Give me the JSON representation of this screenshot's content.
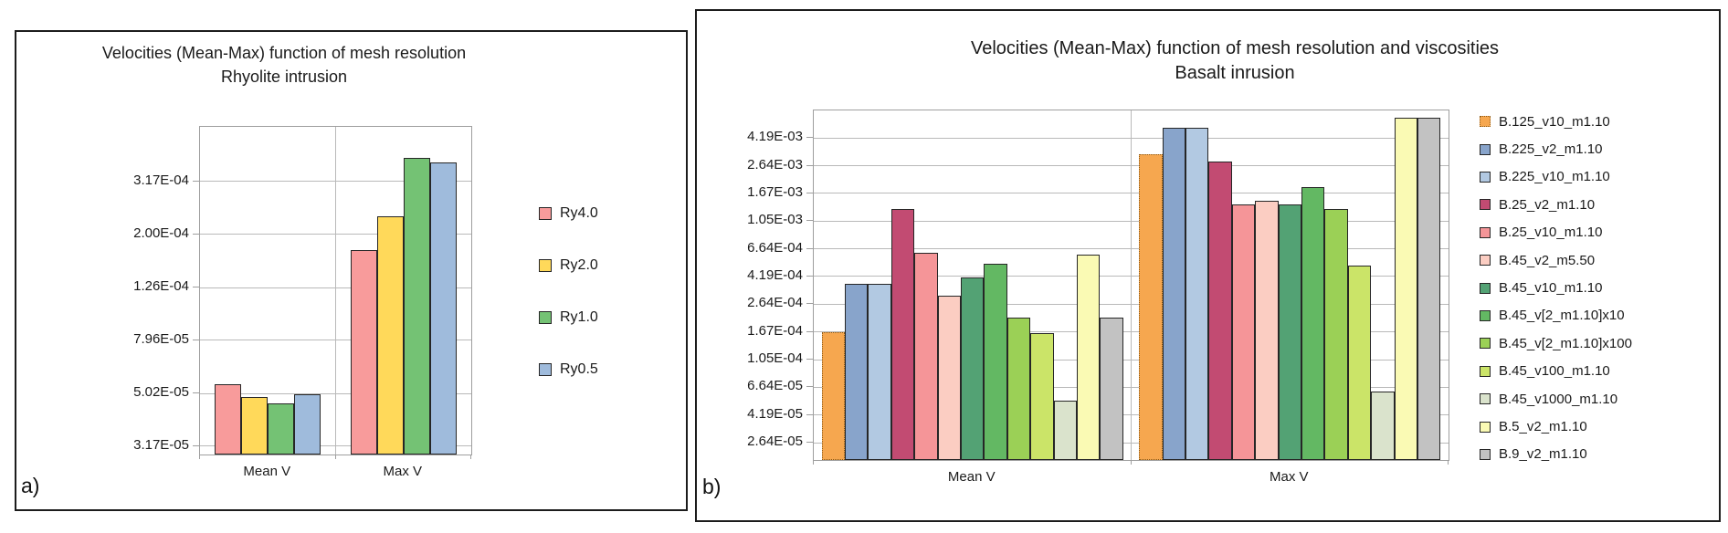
{
  "figure": {
    "panel_a_label": "a)",
    "panel_b_label": "b)"
  },
  "chart_data": [
    {
      "type": "bar",
      "scale": "log",
      "title": "Velocities (Mean-Max) function of mesh resolution",
      "subtitle": "Rhyolite intrusion",
      "categories": [
        "Mean V",
        "Max V"
      ],
      "series": [
        {
          "name": "Ry4.0",
          "color": "#F89B9B",
          "values": [
            5.45e-05,
            0.000175
          ]
        },
        {
          "name": "Ry2.0",
          "color": "#FFD95A",
          "values": [
            4.85e-05,
            0.000235
          ]
        },
        {
          "name": "Ry1.0",
          "color": "#74C274",
          "values": [
            4.6e-05,
            0.00039
          ]
        },
        {
          "name": "Ry0.5",
          "color": "#9FBBDC",
          "values": [
            5e-05,
            0.000375
          ]
        }
      ],
      "y_tick_values": [
        3.17e-05,
        5.02e-05,
        7.96e-05,
        0.000126,
        0.0002,
        0.000317
      ],
      "y_tick_labels": [
        "3.17E-05",
        "5.02E-05",
        "7.96E-05",
        "1.26E-04",
        "2.00E-04",
        "3.17E-04"
      ],
      "ylim": [
        2.95e-05,
        0.00051
      ],
      "grid": true,
      "legend_position": "right",
      "bar_group_fill": 0.781
    },
    {
      "type": "bar",
      "scale": "log",
      "title": "Velocities (Mean-Max) function of mesh resolution and viscosities",
      "subtitle": "Basalt inrusion",
      "categories": [
        "Mean V",
        "Max V"
      ],
      "series": [
        {
          "name": "B.125_v10_m1.10",
          "color": "#F6A74F",
          "border_style": "dotted",
          "border_color": "#8a5a19",
          "values": [
            0.000167,
            0.0032
          ]
        },
        {
          "name": "B.225_v2_m1.10",
          "color": "#88A4CB",
          "values": [
            0.00037,
            0.005
          ]
        },
        {
          "name": "B.225_v10_m1.10",
          "color": "#B2C9E2",
          "values": [
            0.00037,
            0.005
          ]
        },
        {
          "name": "B.25_v2_m1.10",
          "color": "#C24B72",
          "values": [
            0.00128,
            0.00285
          ]
        },
        {
          "name": "B.25_v10_m1.10",
          "color": "#F59598",
          "values": [
            0.00062,
            0.0014
          ]
        },
        {
          "name": "B.45_v2_m5.50",
          "color": "#FBCDC2",
          "values": [
            0.000305,
            0.00147
          ]
        },
        {
          "name": "B.45_v10_m1.10",
          "color": "#53A274",
          "values": [
            0.000415,
            0.00138
          ]
        },
        {
          "name": "B.45_v[2_m1.10]x10",
          "color": "#63B863",
          "values": [
            0.00052,
            0.00185
          ]
        },
        {
          "name": "B.45_v[2_m1.10]x100",
          "color": "#9BD056",
          "values": [
            0.00021,
            0.00128
          ]
        },
        {
          "name": "B.45_v100_m1.10",
          "color": "#CBE468",
          "values": [
            0.000163,
            0.0005
          ]
        },
        {
          "name": "B.45_v1000_m1.10",
          "color": "#DAE3CC",
          "values": [
            5.3e-05,
            6.2e-05
          ]
        },
        {
          "name": "B.5_v2_m1.10",
          "color": "#FAFAB4",
          "values": [
            0.0006,
            0.0059
          ]
        },
        {
          "name": "B.9_v2_m1.10",
          "color": "#C2C2C2",
          "values": [
            0.00021,
            0.0059
          ]
        }
      ],
      "y_tick_values": [
        2.64e-05,
        4.19e-05,
        6.64e-05,
        0.000105,
        0.000167,
        0.000264,
        0.000419,
        0.000664,
        0.00105,
        0.00167,
        0.00264,
        0.00419
      ],
      "y_tick_labels": [
        "2.64E-05",
        "4.19E-05",
        "6.64E-05",
        "1.05E-04",
        "1.67E-04",
        "2.64E-04",
        "4.19E-04",
        "6.64E-04",
        "1.05E-03",
        "1.67E-03",
        "2.64E-03",
        "4.19E-03"
      ],
      "ylim": [
        1.98e-05,
        0.00664
      ],
      "grid": true,
      "legend_position": "right",
      "bar_group_fill": 0.95
    }
  ]
}
